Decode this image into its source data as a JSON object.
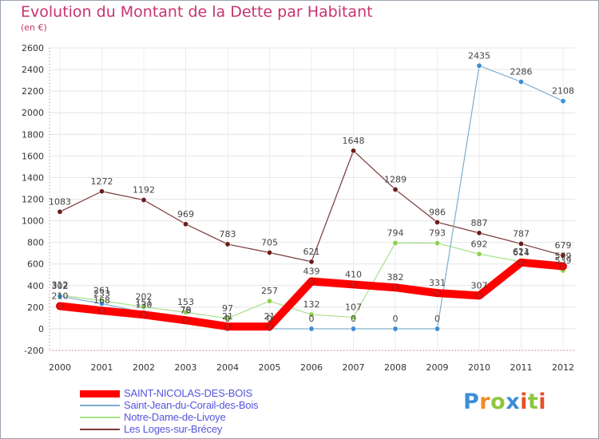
{
  "title": "Evolution du Montant de la Dette par Habitant",
  "subtitle": "(en €)",
  "logo": {
    "text": "Proxiti",
    "letter_colors": [
      "#3a8fd6",
      "#f08a24",
      "#8ec63f",
      "#3a8fd6",
      "#e8502a",
      "#8ec63f",
      "#e8502a"
    ]
  },
  "chart_data": {
    "type": "line",
    "x": [
      2000,
      2001,
      2002,
      2003,
      2004,
      2005,
      2006,
      2007,
      2008,
      2009,
      2010,
      2011,
      2012
    ],
    "xlabel": "",
    "ylabel": "",
    "ylim": [
      -200,
      2600
    ],
    "yticks": [
      -200,
      0,
      200,
      400,
      600,
      800,
      1000,
      1200,
      1400,
      1600,
      1800,
      2000,
      2200,
      2400,
      2600
    ],
    "grid": true,
    "legend_position": "bottom-left",
    "series": [
      {
        "name": "SAINT-NICOLAS-DES-BOIS",
        "color": "#ff0000",
        "marker_color": "#e01010",
        "highlight": true,
        "values": [
          210,
          168,
          130,
          79,
          21,
          21,
          439,
          410,
          382,
          331,
          307,
          614,
          579
        ]
      },
      {
        "name": "Saint-Jean-du-Corail-des-Bois",
        "color": "#7aaed0",
        "marker_color": "#3c8ed6",
        "highlight": false,
        "values": [
          302,
          233,
          151,
          76,
          0,
          0,
          0,
          0,
          0,
          0,
          2435,
          2286,
          2108
        ]
      },
      {
        "name": "Notre-Dame-de-Livoye",
        "color": "#a8e088",
        "marker_color": "#8ed04a",
        "highlight": false,
        "values": [
          312,
          261,
          202,
          153,
          97,
          257,
          132,
          107,
          794,
          793,
          692,
          621,
          539
        ]
      },
      {
        "name": "Les Loges-sur-Brécey",
        "color": "#7a3838",
        "marker_color": "#6a1d1d",
        "highlight": false,
        "values": [
          1083,
          1272,
          1192,
          969,
          783,
          705,
          621,
          1648,
          1289,
          986,
          887,
          787,
          679
        ]
      }
    ]
  }
}
